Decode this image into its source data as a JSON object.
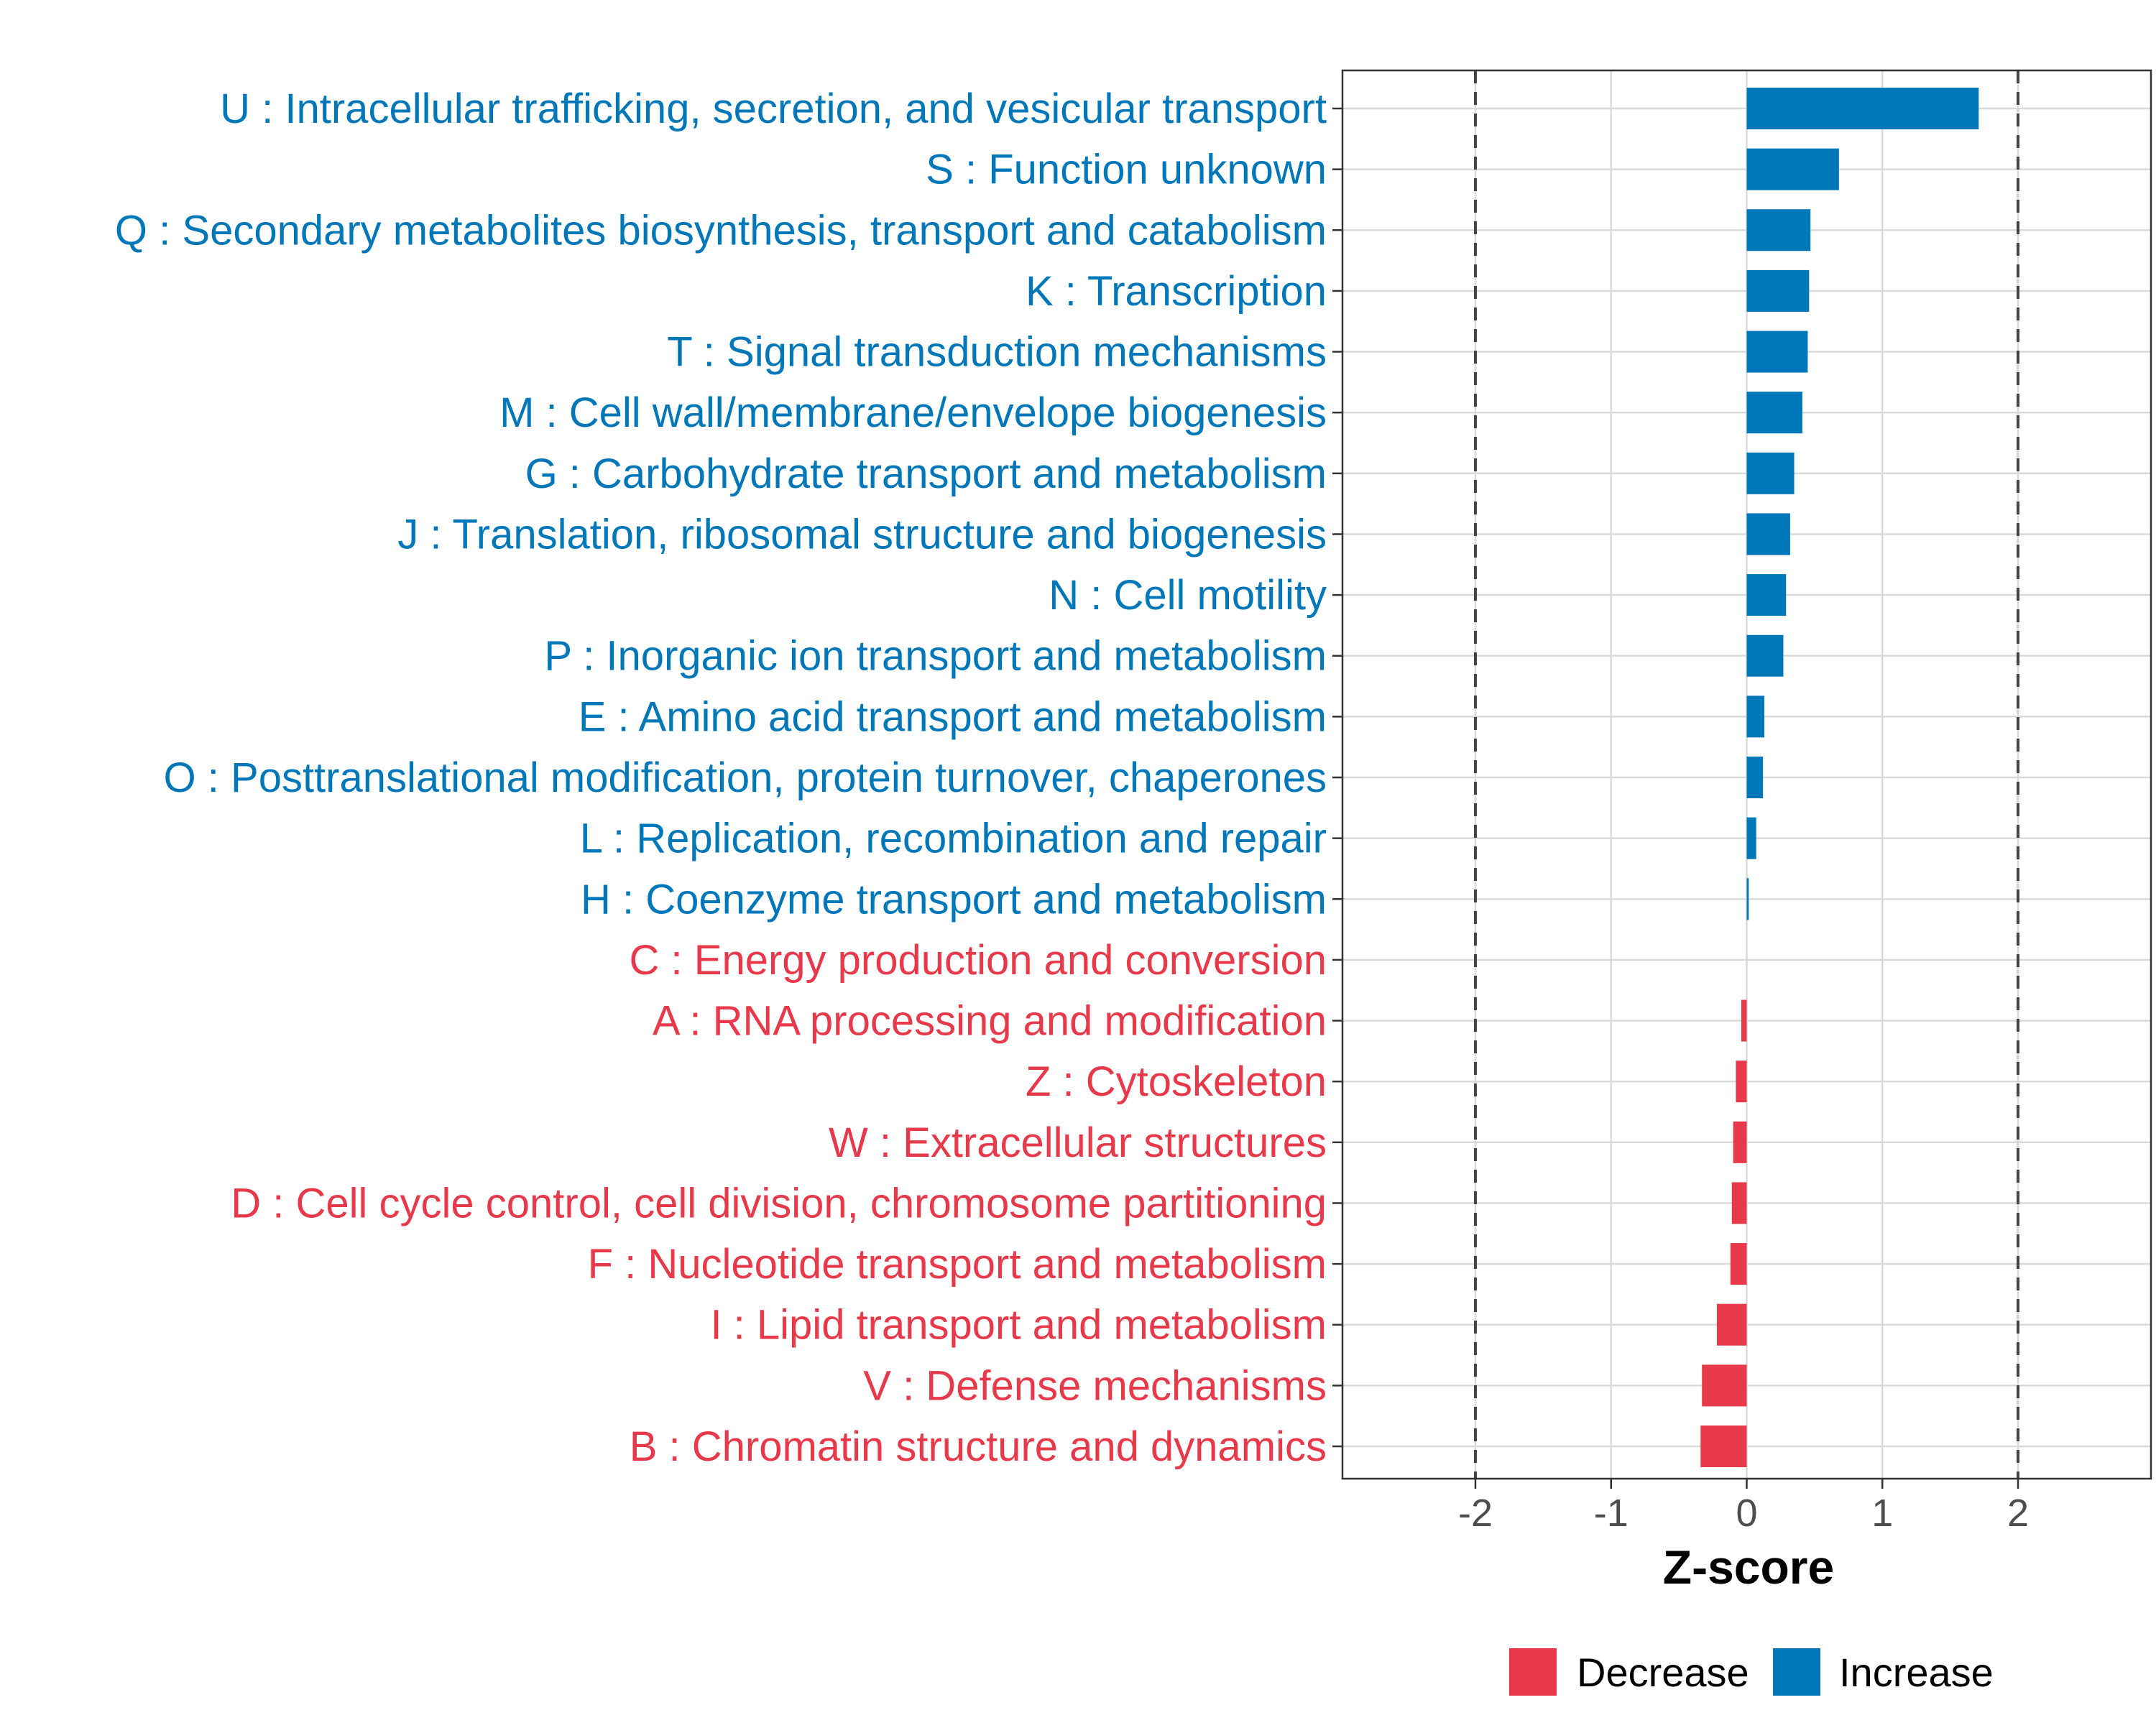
{
  "chart_data": {
    "type": "bar",
    "orientation": "horizontal",
    "title": "",
    "xlabel": "Z-score",
    "ylabel": "",
    "xlim": [
      -2.98,
      2.98
    ],
    "xticks": [
      -2,
      -1,
      0,
      1,
      2
    ],
    "xtick_labels": [
      "-2",
      "-1",
      "0",
      "1",
      "2"
    ],
    "reference_lines": [
      -2,
      2
    ],
    "grid": true,
    "legend_position": "bottom",
    "colors": {
      "Decrease": "#e8394a",
      "Increase": "#0077b8"
    },
    "legend": [
      {
        "label": "Decrease",
        "color": "#e8394a"
      },
      {
        "label": "Increase",
        "color": "#0077b8"
      }
    ],
    "categories": [
      "U : Intracellular trafficking, secretion, and vesicular transport",
      "S : Function unknown",
      "Q : Secondary metabolites biosynthesis, transport and catabolism",
      "K : Transcription",
      "T : Signal transduction mechanisms",
      "M : Cell wall/membrane/envelope biogenesis",
      "G : Carbohydrate transport and metabolism",
      "J : Translation, ribosomal structure and biogenesis",
      "N : Cell motility",
      "P : Inorganic ion transport and metabolism",
      "E : Amino acid transport and metabolism",
      "O : Posttranslational modification, protein turnover, chaperones",
      "L : Replication, recombination and repair",
      "H : Coenzyme transport and metabolism",
      "C : Energy production and conversion",
      "A : RNA processing and modification",
      "Z : Cytoskeleton",
      "W : Extracellular structures",
      "D : Cell cycle control, cell division, chromosome partitioning",
      "F : Nucleotide transport and metabolism",
      "I : Lipid transport and metabolism",
      "V : Defense mechanisms",
      "B : Chromatin structure and dynamics"
    ],
    "values": [
      1.71,
      0.68,
      0.47,
      0.46,
      0.45,
      0.41,
      0.35,
      0.32,
      0.29,
      0.27,
      0.13,
      0.12,
      0.07,
      0.015,
      0.0,
      -0.04,
      -0.08,
      -0.1,
      -0.11,
      -0.12,
      -0.22,
      -0.33,
      -0.34
    ],
    "groups": [
      "Increase",
      "Increase",
      "Increase",
      "Increase",
      "Increase",
      "Increase",
      "Increase",
      "Increase",
      "Increase",
      "Increase",
      "Increase",
      "Increase",
      "Increase",
      "Increase",
      "Decrease",
      "Decrease",
      "Decrease",
      "Decrease",
      "Decrease",
      "Decrease",
      "Decrease",
      "Decrease",
      "Decrease"
    ]
  }
}
